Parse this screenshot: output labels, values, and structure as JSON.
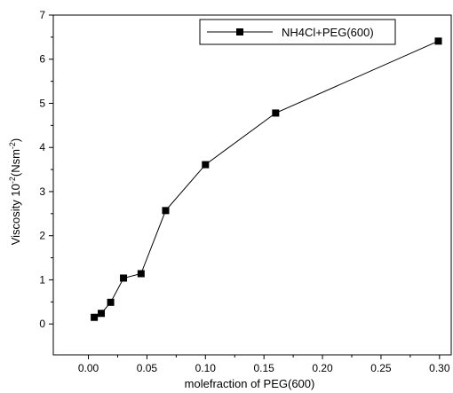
{
  "chart_data": {
    "type": "line",
    "xlabel": "molefraction of PEG(600)",
    "ylabel": "Viscosity 10",
    "ylabel_sup1": "-2",
    "ylabel_unit": "(Nsm",
    "ylabel_sup2": "-2",
    "ylabel_close": ")",
    "xlim": [
      -0.03,
      0.31
    ],
    "ylim": [
      -0.7,
      7
    ],
    "xticks": [
      0.0,
      0.05,
      0.1,
      0.15,
      0.2,
      0.25,
      0.3
    ],
    "xtick_labels": [
      "0.00",
      "0.05",
      "0.10",
      "0.15",
      "0.20",
      "0.25",
      "0.30"
    ],
    "yticks": [
      0,
      1,
      2,
      3,
      4,
      5,
      6,
      7
    ],
    "ytick_labels": [
      "0",
      "1",
      "2",
      "3",
      "4",
      "5",
      "6",
      "7"
    ],
    "grid": false,
    "legend_position": "top-right",
    "series": [
      {
        "name": "NH4Cl+PEG(600)",
        "marker": "square",
        "color": "#000000",
        "x": [
          0.005,
          0.011,
          0.019,
          0.03,
          0.045,
          0.066,
          0.1,
          0.16,
          0.299
        ],
        "y": [
          0.15,
          0.24,
          0.49,
          1.04,
          1.14,
          2.57,
          3.61,
          4.78,
          6.41
        ]
      }
    ]
  }
}
